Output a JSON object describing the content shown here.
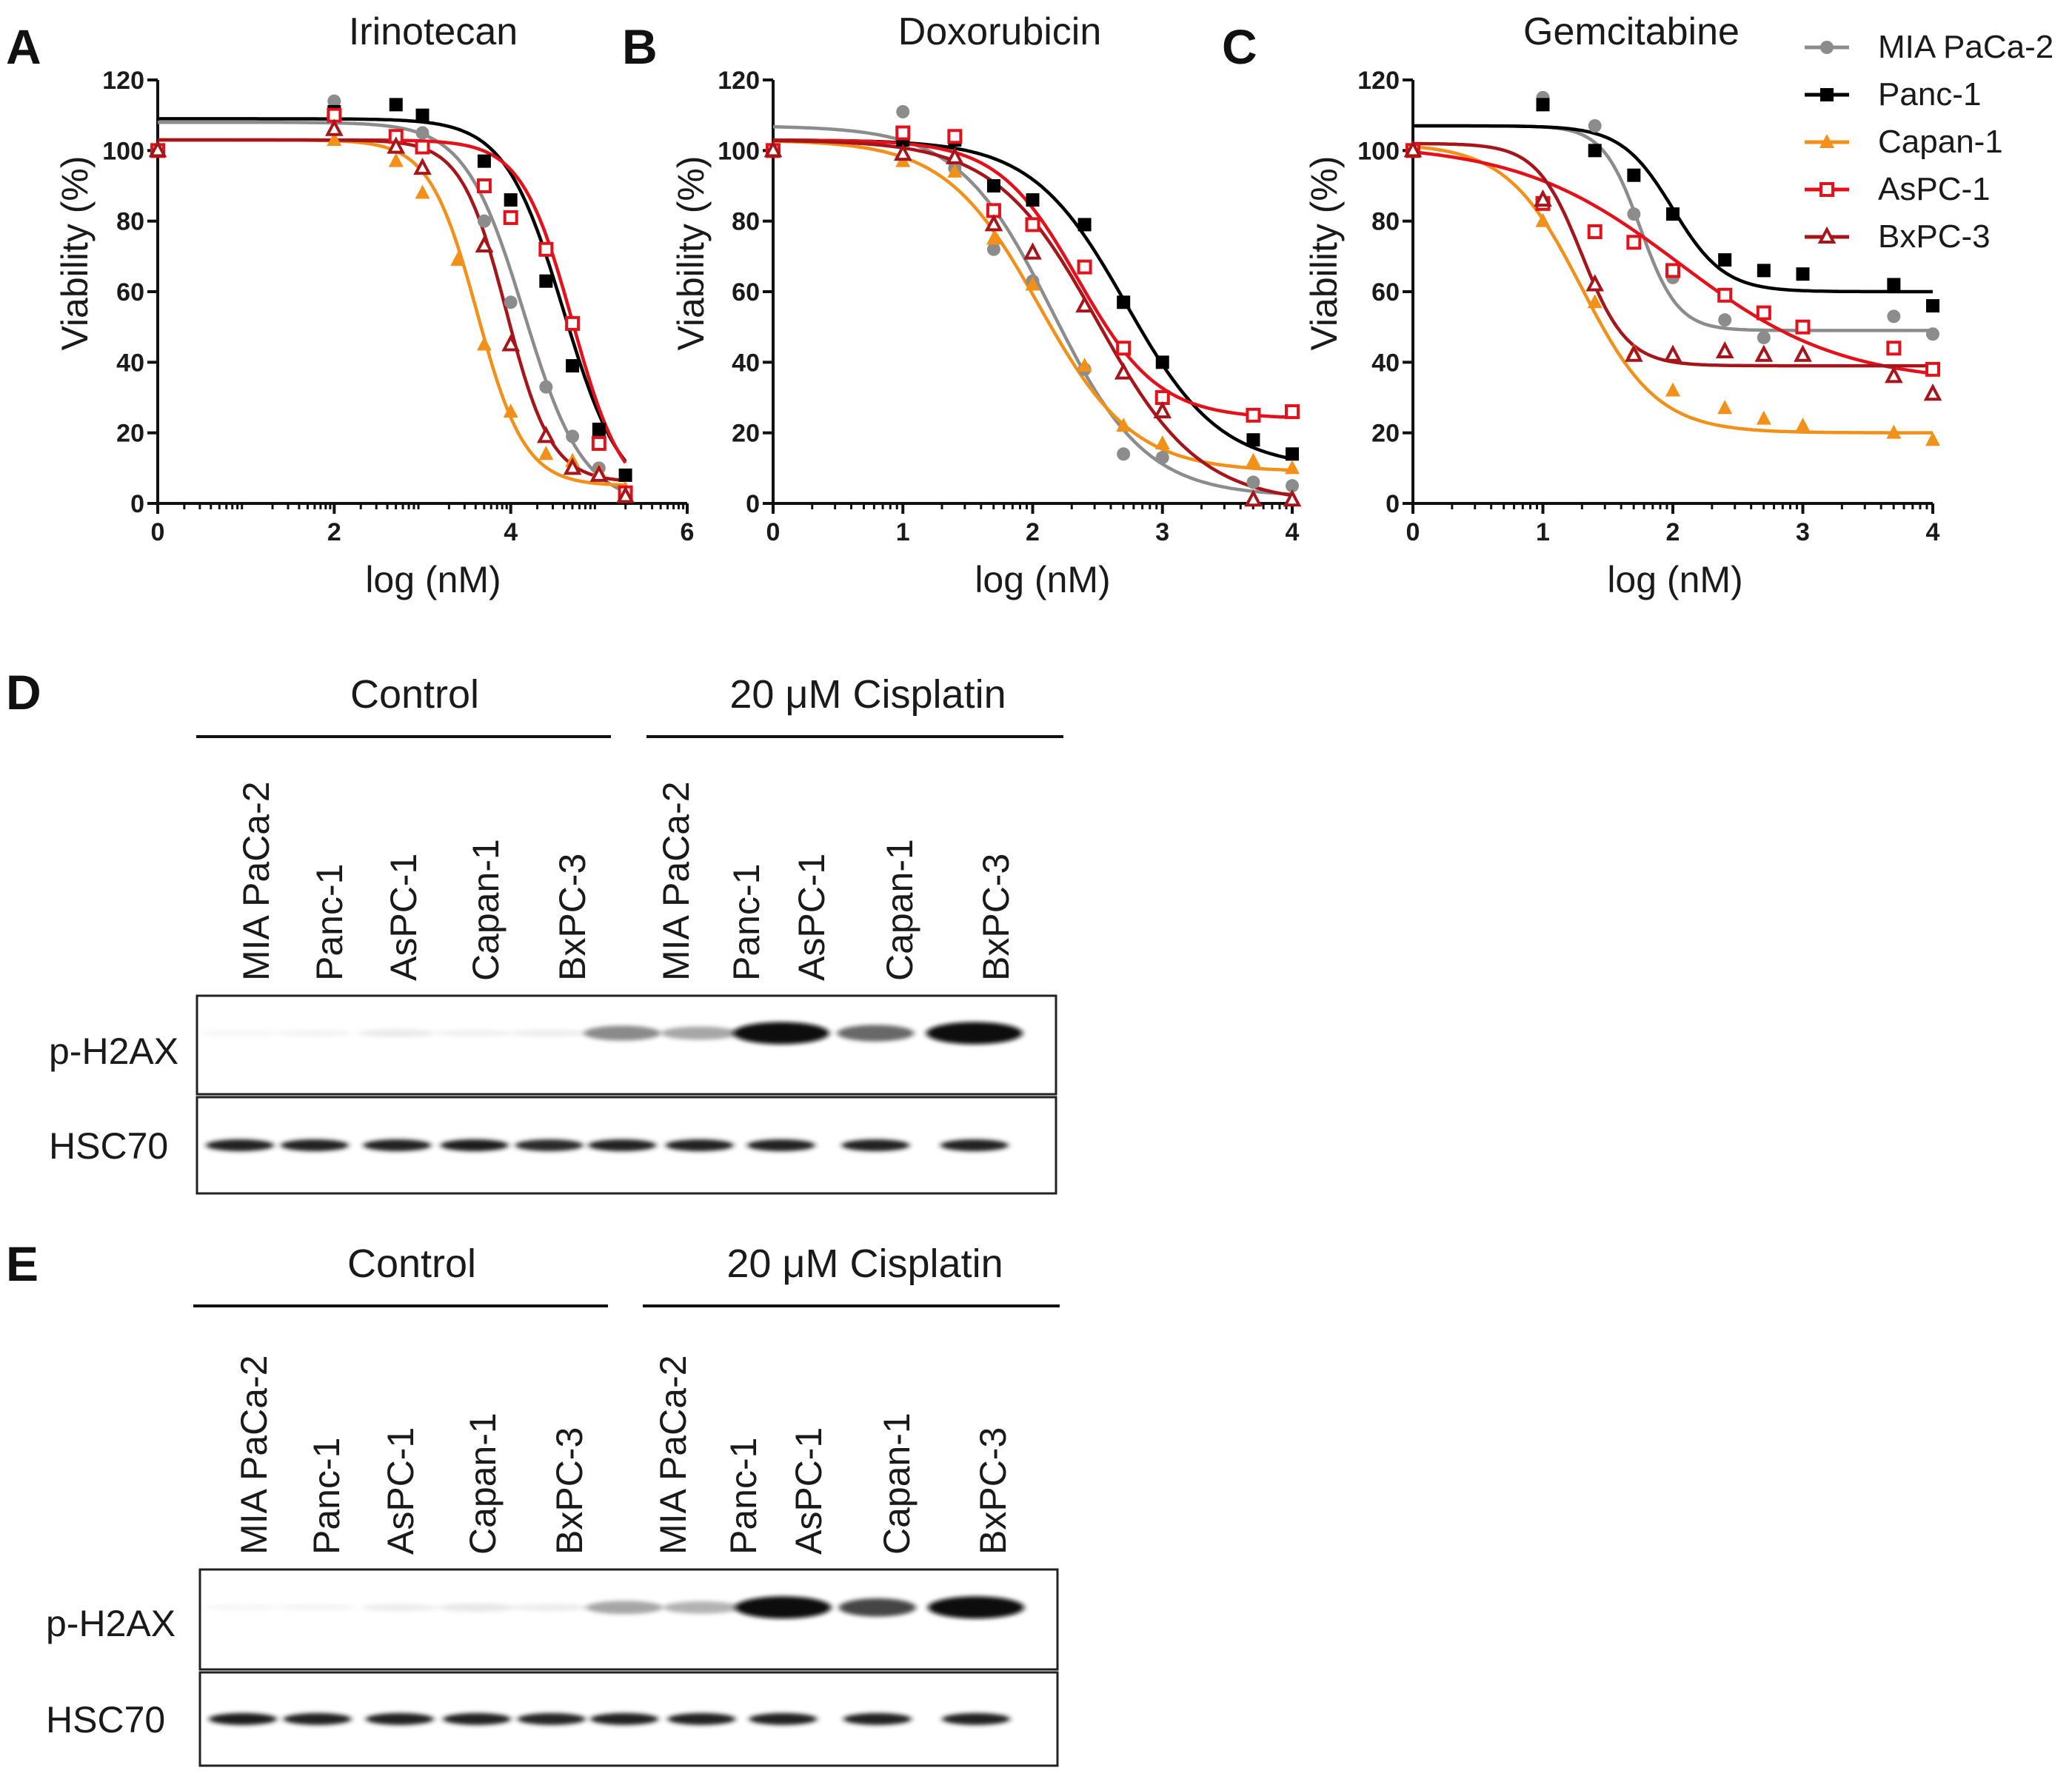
{
  "colors": {
    "MIA PaCa-2": "#8c8c8c",
    "Panc-1": "#000000",
    "Capan-1": "#f39019",
    "AsPC-1": "#e4111b",
    "BxPC-3": "#a5151a"
  },
  "legend": [
    {
      "name": "MIA PaCa-2",
      "marker": "circle"
    },
    {
      "name": "Panc-1",
      "marker": "square"
    },
    {
      "name": "Capan-1",
      "marker": "triangle"
    },
    {
      "name": "AsPC-1",
      "marker": "square-open"
    },
    {
      "name": "BxPC-3",
      "marker": "triangle-open"
    }
  ],
  "chart_data": [
    {
      "letter": "A",
      "type": "scatter",
      "title": "Irinotecan",
      "xlabel": "log (nM)",
      "ylabel": "Viability (%)",
      "xlim": [
        0,
        6
      ],
      "ylim": [
        0,
        120
      ],
      "xticks": [
        0,
        2,
        4,
        6
      ],
      "yticks": [
        0,
        20,
        40,
        60,
        80,
        100,
        120
      ],
      "series": [
        {
          "name": "MIA PaCa-2",
          "x": [
            0,
            2,
            3,
            3.7,
            4,
            4.4,
            4.7,
            5,
            5.3
          ],
          "y": [
            100,
            114,
            105,
            80,
            57,
            33,
            19,
            10,
            3
          ],
          "fit": {
            "top": 108,
            "bottom": 0,
            "ec50": 4.15,
            "hill": 1.3
          }
        },
        {
          "name": "Panc-1",
          "x": [
            0,
            2,
            2.7,
            3,
            3.7,
            4,
            4.4,
            4.7,
            5,
            5.3
          ],
          "y": [
            100,
            111,
            113,
            110,
            97,
            86,
            63,
            39,
            21,
            8
          ],
          "fit": {
            "top": 109,
            "bottom": 0,
            "ec50": 4.6,
            "hill": 1.3
          }
        },
        {
          "name": "Capan-1",
          "x": [
            0,
            2,
            2.7,
            3,
            3.4,
            3.7,
            4,
            4.4,
            4.7,
            5,
            5.3
          ],
          "y": [
            100,
            103,
            97,
            88,
            69,
            45,
            26,
            14,
            12,
            9,
            4
          ],
          "fit": {
            "top": 103,
            "bottom": 5,
            "ec50": 3.62,
            "hill": 1.6
          }
        },
        {
          "name": "AsPC-1",
          "x": [
            0,
            2,
            2.7,
            3,
            3.7,
            4,
            4.4,
            4.7,
            5,
            5.3
          ],
          "y": [
            100,
            110,
            104,
            101,
            90,
            81,
            72,
            51,
            17,
            3
          ],
          "fit": {
            "top": 103,
            "bottom": 0,
            "ec50": 4.7,
            "hill": 1.5
          }
        },
        {
          "name": "BxPC-3",
          "x": [
            0,
            2,
            2.7,
            3,
            3.7,
            4,
            4.4,
            4.7,
            5,
            5.3
          ],
          "y": [
            100,
            106,
            101,
            95,
            73,
            45,
            19,
            10,
            8,
            2
          ],
          "fit": {
            "top": 103,
            "bottom": 6,
            "ec50": 3.95,
            "hill": 1.7
          }
        }
      ]
    },
    {
      "letter": "B",
      "type": "scatter",
      "title": "Doxorubicin",
      "xlabel": "log (nM)",
      "ylabel": "Viability (%)",
      "xlim": [
        0,
        4
      ],
      "ylim": [
        0,
        120
      ],
      "xticks": [
        0,
        1,
        2,
        3,
        4
      ],
      "yticks": [
        0,
        20,
        40,
        60,
        80,
        100,
        120
      ],
      "series": [
        {
          "name": "MIA PaCa-2",
          "x": [
            0,
            1,
            1.4,
            1.7,
            2,
            2.4,
            2.7,
            3,
            3.7,
            4
          ],
          "y": [
            100,
            111,
            95,
            72,
            63,
            38,
            14,
            13,
            6,
            5
          ],
          "fit": {
            "top": 107,
            "bottom": 2,
            "ec50": 2.15,
            "hill": 1.2
          }
        },
        {
          "name": "Panc-1",
          "x": [
            0,
            1,
            1.4,
            1.7,
            2,
            2.4,
            2.7,
            3,
            3.7,
            4
          ],
          "y": [
            100,
            103,
            103,
            90,
            86,
            79,
            57,
            40,
            18,
            14
          ],
          "fit": {
            "top": 103,
            "bottom": 10,
            "ec50": 2.72,
            "hill": 1.2
          }
        },
        {
          "name": "Capan-1",
          "x": [
            0,
            1,
            1.4,
            1.7,
            2,
            2.4,
            2.7,
            3,
            3.7,
            4
          ],
          "y": [
            100,
            97,
            94,
            75,
            62,
            39,
            22,
            17,
            12,
            10
          ],
          "fit": {
            "top": 103,
            "bottom": 9,
            "ec50": 2.05,
            "hill": 1.2
          }
        },
        {
          "name": "AsPC-1",
          "x": [
            0,
            1,
            1.4,
            1.7,
            2,
            2.4,
            2.7,
            3,
            3.7,
            4
          ],
          "y": [
            100,
            105,
            104,
            83,
            79,
            67,
            44,
            30,
            25,
            26
          ],
          "fit": {
            "top": 103,
            "bottom": 24,
            "ec50": 2.35,
            "hill": 1.4
          }
        },
        {
          "name": "BxPC-3",
          "x": [
            0,
            1,
            1.4,
            1.7,
            2,
            2.4,
            2.7,
            3,
            3.7,
            4
          ],
          "y": [
            100,
            99,
            98,
            79,
            71,
            56,
            37,
            26,
            1,
            1
          ],
          "fit": {
            "top": 103,
            "bottom": 0,
            "ec50": 2.5,
            "hill": 1.1
          }
        }
      ]
    },
    {
      "letter": "C",
      "type": "scatter",
      "title": "Gemcitabine",
      "xlabel": "log (nM)",
      "ylabel": "Viability (%)",
      "xlim": [
        0,
        4
      ],
      "ylim": [
        0,
        120
      ],
      "xticks": [
        0,
        1,
        2,
        3,
        4
      ],
      "yticks": [
        0,
        20,
        40,
        60,
        80,
        100,
        120
      ],
      "series": [
        {
          "name": "MIA PaCa-2",
          "x": [
            0,
            1,
            1.4,
            1.7,
            2,
            2.4,
            2.7,
            3,
            3.7,
            4
          ],
          "y": [
            100,
            115,
            107,
            82,
            64,
            52,
            47,
            50,
            53,
            48
          ],
          "fit": {
            "top": 107,
            "bottom": 49,
            "ec50": 1.75,
            "hill": 3.0
          }
        },
        {
          "name": "Panc-1",
          "x": [
            0,
            1,
            1.4,
            1.7,
            2,
            2.4,
            2.7,
            3,
            3.7,
            4
          ],
          "y": [
            100,
            113,
            100,
            93,
            82,
            69,
            66,
            65,
            62,
            56
          ],
          "fit": {
            "top": 107,
            "bottom": 60,
            "ec50": 2.0,
            "hill": 2.2
          }
        },
        {
          "name": "Capan-1",
          "x": [
            0,
            1,
            1.4,
            1.7,
            2,
            2.4,
            2.7,
            3,
            3.7,
            4
          ],
          "y": [
            100,
            80,
            57,
            43,
            32,
            27,
            24,
            22,
            20,
            18
          ],
          "fit": {
            "top": 102,
            "bottom": 20,
            "ec50": 1.3,
            "hill": 1.5
          }
        },
        {
          "name": "AsPC-1",
          "x": [
            0,
            1,
            1.4,
            1.7,
            2,
            2.4,
            2.7,
            3,
            3.7,
            4
          ],
          "y": [
            100,
            85,
            77,
            74,
            66,
            59,
            54,
            50,
            44,
            38
          ],
          "fit": {
            "top": 102,
            "bottom": 34,
            "ec50": 2.05,
            "hill": 0.7
          }
        },
        {
          "name": "BxPC-3",
          "x": [
            0,
            1,
            1.4,
            1.7,
            2,
            2.4,
            2.7,
            3,
            3.7,
            4
          ],
          "y": [
            100,
            86,
            62,
            42,
            42,
            43,
            42,
            42,
            36,
            31
          ],
          "fit": {
            "top": 102,
            "bottom": 39,
            "ec50": 1.3,
            "hill": 2.5
          }
        }
      ]
    }
  ],
  "blots": [
    {
      "letter": "D",
      "group_labels": [
        "Control",
        "20 μM Cisplatin"
      ],
      "lanes": [
        "MIA PaCa-2",
        "Panc-1",
        "AsPC-1",
        "Capan-1",
        "BxPC-3",
        "MIA PaCa-2",
        "Panc-1",
        "AsPC-1",
        "Capan-1",
        "BxPC-3"
      ],
      "rows": [
        {
          "label": "p-H2AX",
          "intensity": [
            0.02,
            0.05,
            0.12,
            0.07,
            0.09,
            0.55,
            0.45,
            1.0,
            0.65,
            1.0
          ]
        },
        {
          "label": "HSC70",
          "intensity": [
            0.9,
            0.9,
            0.9,
            0.92,
            0.85,
            0.9,
            0.9,
            0.9,
            0.9,
            0.9
          ]
        }
      ]
    },
    {
      "letter": "E",
      "group_labels": [
        "Control",
        "20 μM Cisplatin"
      ],
      "lanes": [
        "MIA PaCa-2",
        "Panc-1",
        "AsPC-1",
        "Capan-1",
        "BxPC-3",
        "MIA PaCa-2",
        "Panc-1",
        "AsPC-1",
        "Capan-1",
        "BxPC-3"
      ],
      "rows": [
        {
          "label": "p-H2AX",
          "intensity": [
            0.02,
            0.04,
            0.1,
            0.14,
            0.1,
            0.45,
            0.4,
            1.0,
            0.75,
            1.0
          ]
        },
        {
          "label": "HSC70",
          "intensity": [
            0.92,
            0.9,
            0.9,
            0.9,
            0.88,
            0.9,
            0.9,
            0.9,
            0.9,
            0.9
          ]
        }
      ]
    }
  ]
}
